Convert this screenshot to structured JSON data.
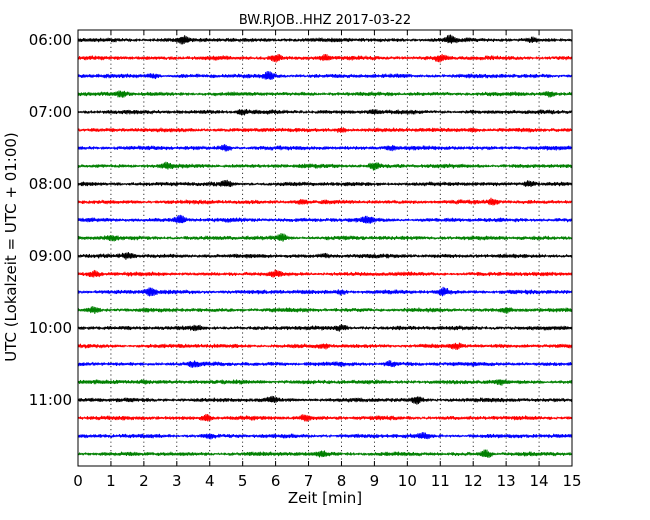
{
  "chart_data": {
    "type": "line",
    "title": "BW.RJOB..HHZ 2017-03-22",
    "xlabel": "Zeit  [min]",
    "ylabel": "UTC (Lokalzeit = UTC + 01:00)",
    "xlim": [
      0,
      15
    ],
    "x_ticks": [
      0,
      1,
      2,
      3,
      4,
      5,
      6,
      7,
      8,
      9,
      10,
      11,
      12,
      13,
      14,
      15
    ],
    "x_tick_labels": [
      "0",
      "1",
      "2",
      "3",
      "4",
      "5",
      "6",
      "7",
      "8",
      "9",
      "10",
      "11",
      "12",
      "13",
      "14",
      "15"
    ],
    "y_tick_labels": [
      "06:00",
      "07:00",
      "08:00",
      "09:00",
      "10:00",
      "11:00"
    ],
    "rows_per_hour": 4,
    "row_count": 24,
    "trace_colors": [
      "#000000",
      "#ff0000",
      "#0000ff",
      "#008000"
    ],
    "grid": {
      "x": "dotted vertical at each minute",
      "y": "none"
    },
    "legend": "none",
    "bursts": [
      [
        [
          3.2,
          0.7
        ],
        [
          11.3,
          0.9
        ],
        [
          13.8,
          0.5
        ]
      ],
      [
        [
          6.0,
          0.9
        ],
        [
          11.0,
          0.8
        ],
        [
          7.5,
          0.6
        ]
      ],
      [
        [
          5.8,
          0.9
        ],
        [
          2.3,
          0.5
        ]
      ],
      [
        [
          1.3,
          0.7
        ],
        [
          14.3,
          0.5
        ]
      ],
      [
        [
          5.0,
          0.5
        ],
        [
          9.0,
          0.4
        ]
      ],
      [
        [
          8.0,
          0.5
        ],
        [
          12.0,
          0.4
        ]
      ],
      [
        [
          4.5,
          0.7
        ],
        [
          9.5,
          0.5
        ]
      ],
      [
        [
          9.0,
          0.8
        ],
        [
          2.7,
          0.6
        ]
      ],
      [
        [
          4.5,
          0.6
        ],
        [
          13.7,
          0.7
        ]
      ],
      [
        [
          6.8,
          0.5
        ],
        [
          12.6,
          0.7
        ]
      ],
      [
        [
          3.1,
          1.0
        ],
        [
          8.8,
          0.6
        ]
      ],
      [
        [
          6.2,
          0.9
        ],
        [
          1.0,
          0.5
        ]
      ],
      [
        [
          1.5,
          0.6
        ],
        [
          7.5,
          0.4
        ]
      ],
      [
        [
          0.5,
          0.8
        ],
        [
          6.0,
          0.6
        ]
      ],
      [
        [
          2.2,
          1.0
        ],
        [
          11.1,
          0.9
        ],
        [
          8.0,
          0.5
        ]
      ],
      [
        [
          0.5,
          0.6
        ],
        [
          13.0,
          0.5
        ]
      ],
      [
        [
          3.6,
          0.4
        ],
        [
          8.0,
          0.5
        ]
      ],
      [
        [
          7.5,
          0.4
        ],
        [
          11.5,
          0.5
        ]
      ],
      [
        [
          3.5,
          0.5
        ],
        [
          9.5,
          0.6
        ]
      ],
      [
        [
          2.0,
          0.4
        ],
        [
          12.8,
          0.5
        ]
      ],
      [
        [
          10.3,
          0.8
        ],
        [
          5.9,
          0.6
        ]
      ],
      [
        [
          6.9,
          0.7
        ],
        [
          3.9,
          0.8
        ]
      ],
      [
        [
          4.0,
          0.5
        ],
        [
          10.5,
          0.5
        ]
      ],
      [
        [
          12.4,
          1.0
        ],
        [
          7.4,
          0.6
        ]
      ]
    ]
  }
}
